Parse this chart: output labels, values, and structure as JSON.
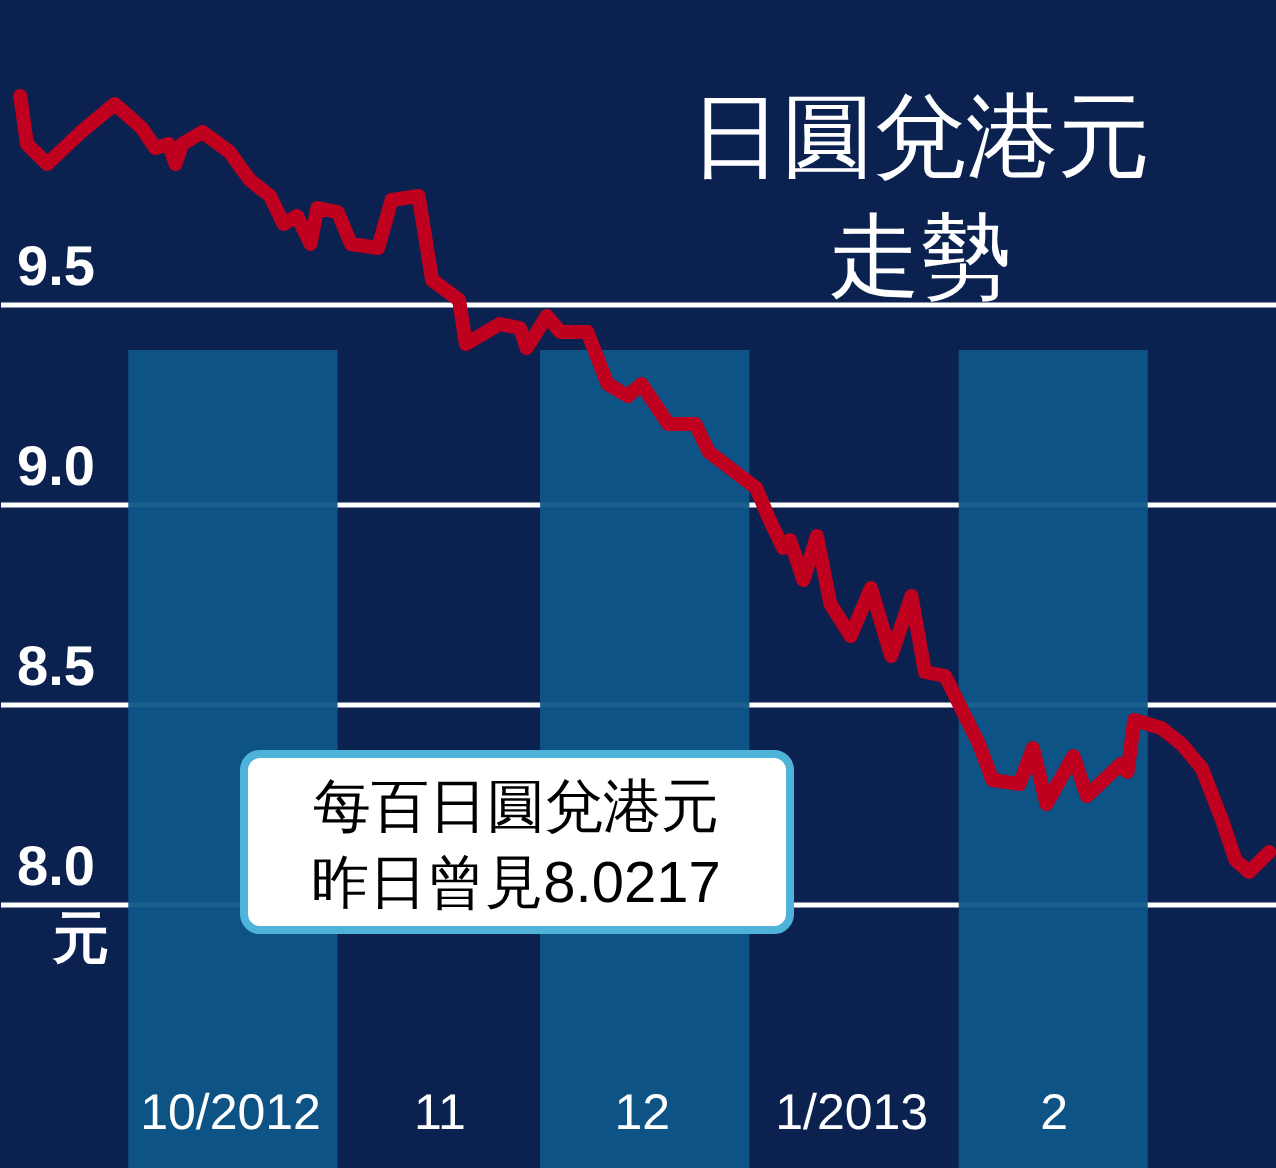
{
  "chart_data": {
    "type": "line",
    "title": "日圓兌港元",
    "subtitle": "走勢",
    "ylabel": "元",
    "annotations": [
      "每百日圓兌港元",
      "昨日曾見8.0217"
    ],
    "x": [
      "2012-09-15",
      "2012-09-16",
      "2012-09-19",
      "2012-09-24",
      "2012-09-29",
      "2012-10-03",
      "2012-10-05",
      "2012-10-07",
      "2012-10-08",
      "2012-10-09",
      "2012-10-12",
      "2012-10-16",
      "2012-10-19",
      "2012-10-22",
      "2012-10-24",
      "2012-10-26",
      "2012-10-28",
      "2012-10-29",
      "2012-11-01",
      "2012-11-03",
      "2012-11-07",
      "2012-11-09",
      "2012-11-13",
      "2012-11-15",
      "2012-11-19",
      "2012-11-20",
      "2012-11-25",
      "2012-11-28",
      "2012-11-29",
      "2012-12-02",
      "2012-12-04",
      "2012-12-08",
      "2012-12-11",
      "2012-12-14",
      "2012-12-16",
      "2012-12-20",
      "2012-12-24",
      "2012-12-26",
      "2013-01-02",
      "2013-01-04",
      "2013-01-06",
      "2013-01-07",
      "2013-01-09",
      "2013-01-11",
      "2013-01-13",
      "2013-01-16",
      "2013-01-19",
      "2013-01-22",
      "2013-01-25",
      "2013-01-27",
      "2013-01-30",
      "2013-02-04",
      "2013-02-06",
      "2013-02-10",
      "2013-02-12",
      "2013-02-14",
      "2013-02-18",
      "2013-02-20",
      "2013-02-25",
      "2013-02-26",
      "2013-02-27",
      "2013-03-03",
      "2013-03-06",
      "2013-03-09",
      "2013-03-12",
      "2013-03-14",
      "2013-03-16",
      "2013-03-19"
    ],
    "series": [
      {
        "color": "#c0001f",
        "values": [
          10.02,
          9.9,
          9.85,
          9.93,
          10.0,
          9.94,
          9.89,
          9.9,
          9.85,
          9.9,
          9.93,
          9.88,
          9.81,
          9.77,
          9.7,
          9.72,
          9.65,
          9.74,
          9.73,
          9.65,
          9.64,
          9.76,
          9.77,
          9.56,
          9.51,
          9.4,
          9.45,
          9.44,
          9.39,
          9.47,
          9.43,
          9.43,
          9.3,
          9.27,
          9.3,
          9.2,
          9.2,
          9.13,
          9.04,
          8.96,
          8.89,
          8.91,
          8.81,
          8.92,
          8.75,
          8.67,
          8.79,
          8.62,
          8.77,
          8.58,
          8.57,
          8.4,
          8.31,
          8.3,
          8.39,
          8.25,
          8.37,
          8.27,
          8.35,
          8.33,
          8.46,
          8.44,
          8.4,
          8.34,
          8.21,
          8.11,
          8.08,
          8.13
        ]
      }
    ],
    "xlim": [
      "2012-09-12",
      "2013-03-20"
    ],
    "xticks": [
      {
        "value": "2012-10-16",
        "label": "10/2012"
      },
      {
        "value": "2012-11-16",
        "label": "11"
      },
      {
        "value": "2012-12-16",
        "label": "12"
      },
      {
        "value": "2013-01-16",
        "label": "1/2013"
      },
      {
        "value": "2013-02-15",
        "label": "2"
      }
    ],
    "ylim": [
      7.34,
      10.26
    ],
    "yticks": [
      {
        "value": 8.0,
        "label": "8.0"
      },
      {
        "value": 8.5,
        "label": "8.5"
      },
      {
        "value": 9.0,
        "label": "9.0"
      },
      {
        "value": 9.5,
        "label": "9.5"
      }
    ],
    "bands": [
      {
        "axis": "x",
        "from": "2012-10-01",
        "to": "2012-11-01",
        "color": "#0e5688"
      },
      {
        "axis": "x",
        "from": "2012-12-01",
        "to": "2013-01-01",
        "color": "#0e5688"
      },
      {
        "axis": "x",
        "from": "2013-02-01",
        "to": "2013-03-01",
        "color": "#0e5688"
      }
    ],
    "grid": "y",
    "line_style": "solid"
  }
}
